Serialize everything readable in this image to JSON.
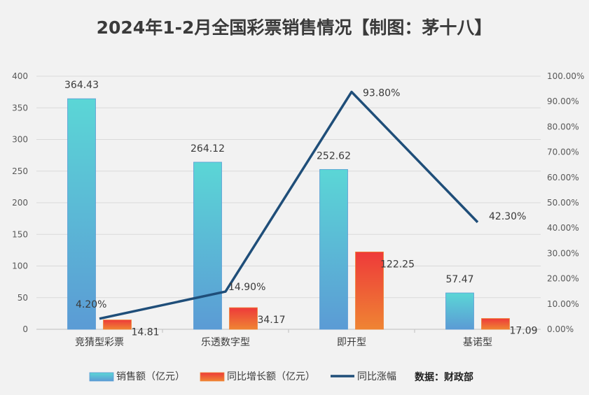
{
  "title": "2024年1-2月全国彩票销售情况【制图：茅十八】",
  "source_note": "数据：财政部",
  "chart_data": {
    "type": "bar",
    "categories": [
      "竞猜型彩票",
      "乐透数字型",
      "即开型",
      "基诺型"
    ],
    "series": [
      {
        "name": "销售额（亿元）",
        "type": "bar",
        "axis": "left",
        "values": [
          364.43,
          264.12,
          252.62,
          57.47
        ],
        "labels": [
          "364.43",
          "264.12",
          "252.62",
          "57.47"
        ],
        "colors": [
          "#5bd6d6",
          "#5b9bd5"
        ]
      },
      {
        "name": "同比增长额（亿元）",
        "type": "bar",
        "axis": "left",
        "values": [
          14.81,
          34.17,
          122.25,
          17.09
        ],
        "labels": [
          "14.81",
          "34.17",
          "122.25",
          "17.09"
        ],
        "colors": [
          "#ee3a3a",
          "#ef8433"
        ]
      },
      {
        "name": "同比涨幅",
        "type": "line",
        "axis": "right",
        "values": [
          4.2,
          14.9,
          93.8,
          42.3
        ],
        "labels": [
          "4.20%",
          "14.90%",
          "93.80%",
          "42.30%"
        ],
        "color": "#1f4e79"
      }
    ],
    "y_left": {
      "min": 0,
      "max": 400,
      "ticks": [
        "0",
        "50",
        "100",
        "150",
        "200",
        "250",
        "300",
        "350",
        "400"
      ]
    },
    "y_right": {
      "min": 0,
      "max": 100,
      "ticks": [
        "0.00%",
        "10.00%",
        "20.00%",
        "30.00%",
        "40.00%",
        "50.00%",
        "60.00%",
        "70.00%",
        "80.00%",
        "90.00%",
        "100.00%"
      ]
    },
    "grid": true,
    "legend_position": "bottom"
  }
}
